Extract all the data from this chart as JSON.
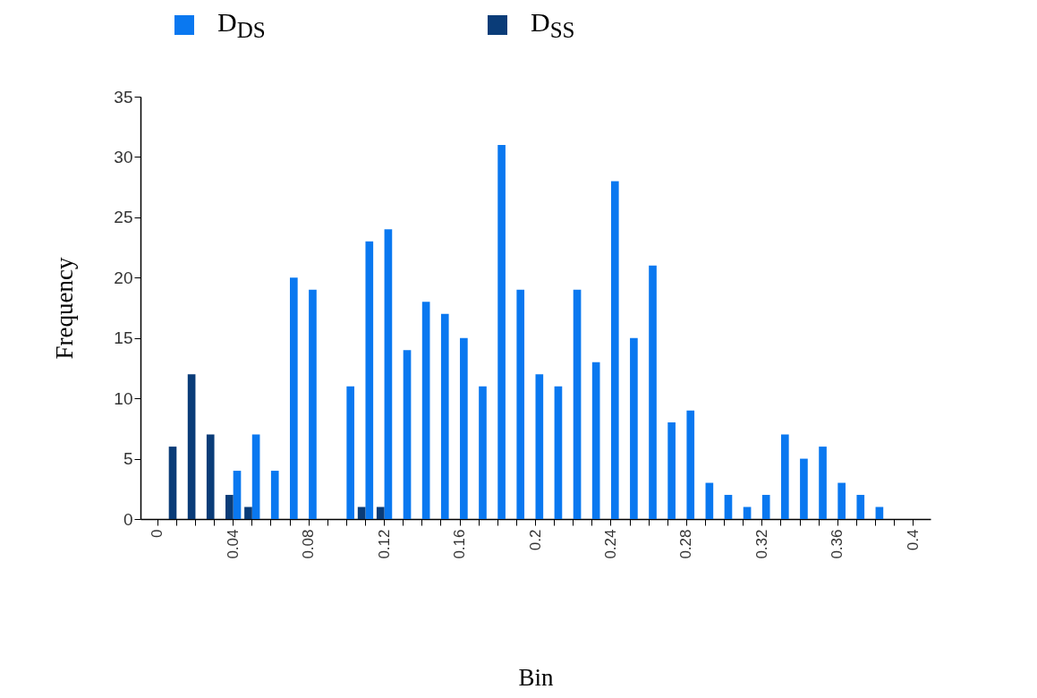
{
  "chart_data": {
    "type": "bar",
    "xlabel": "Bin",
    "ylabel": "Frequency",
    "categories": [
      "0",
      null,
      null,
      null,
      "0.04",
      null,
      null,
      null,
      "0.08",
      null,
      null,
      null,
      "0.12",
      null,
      null,
      null,
      "0.16",
      null,
      null,
      null,
      "0.2",
      null,
      null,
      null,
      "0.24",
      null,
      null,
      null,
      "0.28",
      null,
      null,
      null,
      "0.32",
      null,
      null,
      null,
      "0.36",
      null,
      null,
      null,
      "0.4"
    ],
    "series": [
      {
        "name": "D$_{DS}$",
        "color": "#0a78f0",
        "values": [
          null,
          null,
          null,
          null,
          4,
          7,
          4,
          20,
          19,
          null,
          11,
          23,
          24,
          14,
          18,
          17,
          15,
          11,
          31,
          19,
          12,
          11,
          19,
          13,
          28,
          15,
          21,
          8,
          9,
          3,
          2,
          1,
          2,
          7,
          5,
          6,
          3,
          2,
          1,
          null,
          null
        ]
      },
      {
        "name": "D$_{SS}$",
        "color": "#0a3c78",
        "values": [
          null,
          6,
          12,
          7,
          2,
          1,
          null,
          null,
          null,
          null,
          null,
          1,
          1,
          null,
          null,
          null,
          null,
          null,
          null,
          null,
          null,
          null,
          null,
          null,
          null,
          null,
          null,
          null,
          null,
          null,
          null,
          null,
          null,
          null,
          null,
          null,
          null,
          null,
          null,
          null,
          null
        ]
      }
    ],
    "ylim": [
      0,
      35
    ],
    "yticks": [
      0,
      5,
      10,
      15,
      20,
      25,
      30,
      35
    ],
    "legend": "top"
  }
}
